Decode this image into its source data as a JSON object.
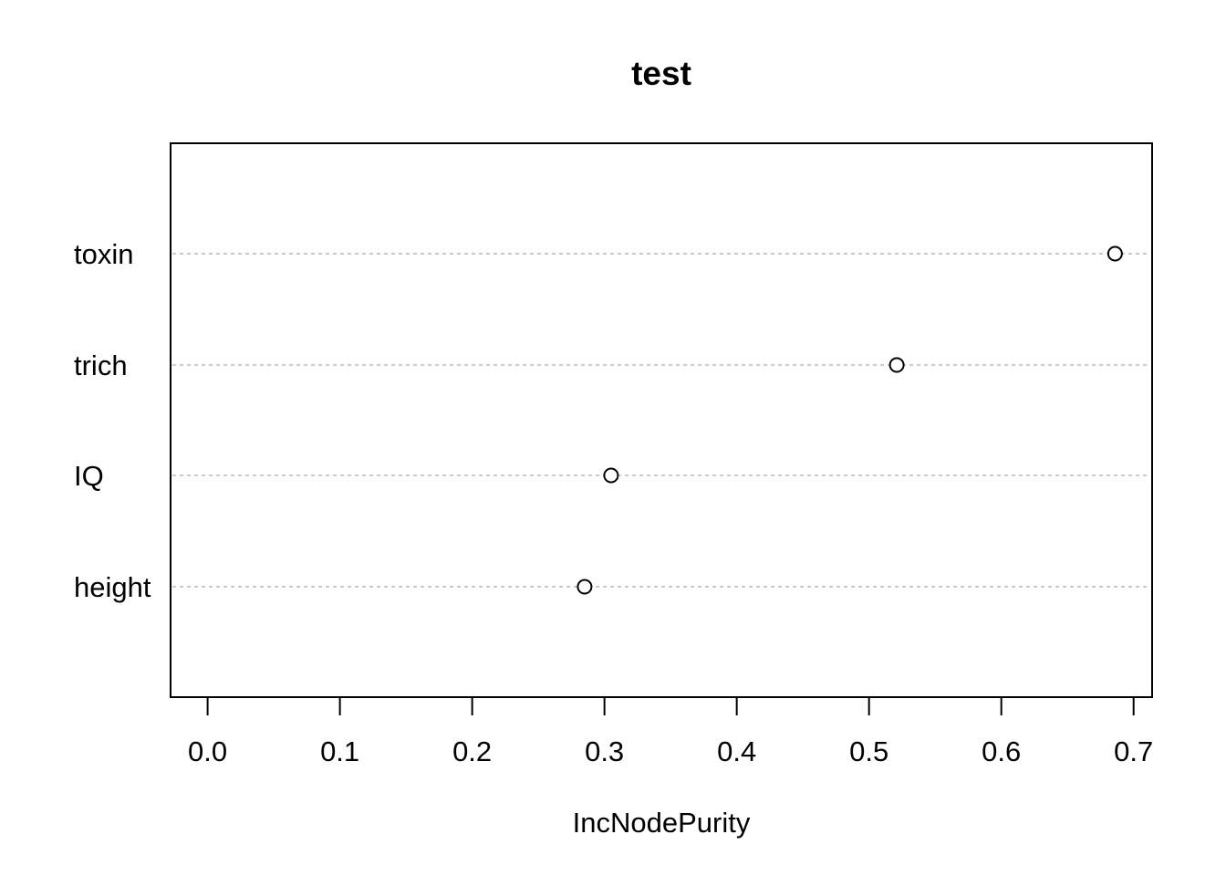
{
  "chart_data": {
    "type": "scatter",
    "title": "test",
    "xlabel": "IncNodePurity",
    "ylabel": "",
    "categories": [
      "toxin",
      "trich",
      "IQ",
      "height"
    ],
    "values": [
      0.686,
      0.521,
      0.305,
      0.285
    ],
    "xlim": [
      -0.028,
      0.714
    ],
    "xticks": [
      0.0,
      0.1,
      0.2,
      0.3,
      0.4,
      0.5,
      0.6,
      0.7
    ],
    "xtick_labels": [
      "0.0",
      "0.1",
      "0.2",
      "0.3",
      "0.4",
      "0.5",
      "0.6",
      "0.7"
    ],
    "grid": true,
    "marker": "open-circle",
    "colors": {
      "points": "#000000",
      "gridlines": "#b8b8b8",
      "frame": "#000000"
    }
  }
}
